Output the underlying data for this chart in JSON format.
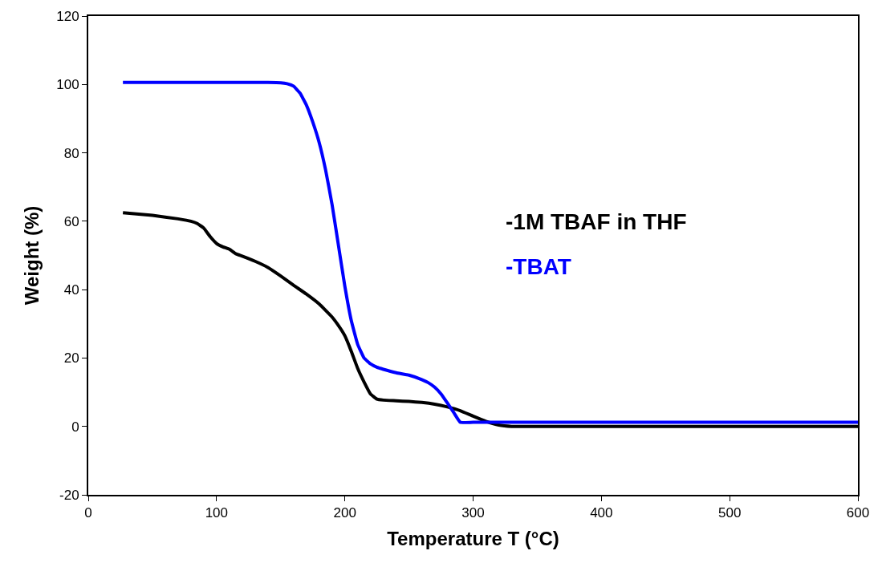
{
  "chart_data": {
    "type": "line",
    "xlabel": "Temperature T (°C)",
    "ylabel": "Weight (%)",
    "xlim": [
      0,
      600
    ],
    "xticks": [
      0,
      100,
      200,
      300,
      400,
      500,
      600
    ],
    "ylim": [
      -20,
      120
    ],
    "yticks": [
      -20,
      0,
      20,
      40,
      60,
      80,
      100,
      120
    ],
    "legend": "right",
    "line_style": "solid",
    "marker": "none",
    "series": [
      {
        "name": "-1M TBAF in THF",
        "color": "#000000",
        "x": [
          27,
          50,
          70,
          80,
          85,
          90,
          95,
          100,
          105,
          110,
          115,
          120,
          130,
          140,
          150,
          160,
          170,
          180,
          190,
          195,
          200,
          205,
          210,
          215,
          220,
          225,
          230,
          240,
          250,
          260,
          270,
          280,
          290,
          300,
          310,
          320,
          330,
          400,
          500,
          600
        ],
        "values": [
          62.5,
          61.7,
          60.7,
          60,
          59.3,
          58,
          55.5,
          53.5,
          52.5,
          51.8,
          50.5,
          49.8,
          48.3,
          46.5,
          44,
          41.3,
          38.7,
          35.8,
          32,
          29.5,
          26.5,
          22,
          17,
          13,
          9.5,
          8,
          7.7,
          7.5,
          7.3,
          7,
          6.5,
          5.7,
          4.6,
          3,
          1.5,
          0.4,
          0,
          0,
          0,
          0
        ]
      },
      {
        "name": "-TBAT",
        "color": "#0000ff",
        "x": [
          27,
          60,
          100,
          140,
          150,
          155,
          160,
          165,
          170,
          175,
          180,
          185,
          190,
          195,
          200,
          205,
          210,
          215,
          220,
          225,
          230,
          240,
          250,
          260,
          265,
          270,
          275,
          280,
          285,
          290,
          300,
          400,
          500,
          600
        ],
        "values": [
          100.6,
          100.6,
          100.6,
          100.6,
          100.5,
          100.2,
          99.5,
          97.5,
          94,
          89,
          83,
          75,
          65,
          53,
          41,
          31,
          24,
          20,
          18.3,
          17.3,
          16.7,
          15.7,
          15,
          13.7,
          12.8,
          11.5,
          9.5,
          6.8,
          4,
          1.2,
          1.2,
          1.2,
          1.2,
          1.2
        ]
      }
    ]
  }
}
